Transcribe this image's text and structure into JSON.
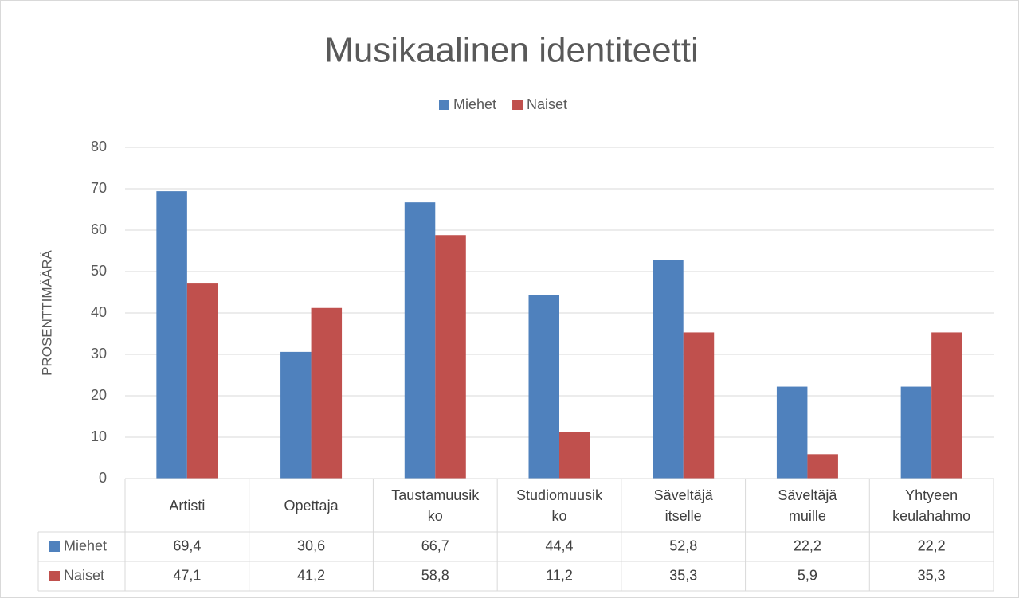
{
  "chart_data": {
    "type": "bar",
    "title": "Musikaalinen identiteetti",
    "y_label": "PROSENTTIMÄÄRÄ",
    "categories": [
      "Artisti",
      "Opettaja",
      "Taustamuusikko",
      "Studiomuusikko",
      "Säveltäjä itselle",
      "Säveltäjä muille",
      "Yhtyeen keulahahmo"
    ],
    "series": [
      {
        "name": "Miehet",
        "color": "#4f81bd",
        "values": [
          69.4,
          30.6,
          66.7,
          44.4,
          52.8,
          22.2,
          22.2
        ],
        "value_labels": [
          "69,4",
          "30,6",
          "66,7",
          "44,4",
          "52,8",
          "22,2",
          "22,2"
        ]
      },
      {
        "name": "Naiset",
        "color": "#c0504d",
        "values": [
          47.1,
          41.2,
          58.8,
          11.2,
          35.3,
          5.9,
          35.3
        ],
        "value_labels": [
          "47,1",
          "41,2",
          "58,8",
          "11,2",
          "35,3",
          "5,9",
          "35,3"
        ]
      }
    ],
    "ylim": [
      0,
      80
    ],
    "yticks": [
      0,
      10,
      20,
      30,
      40,
      50,
      60,
      70,
      80
    ],
    "grid": true,
    "legend": "top"
  }
}
